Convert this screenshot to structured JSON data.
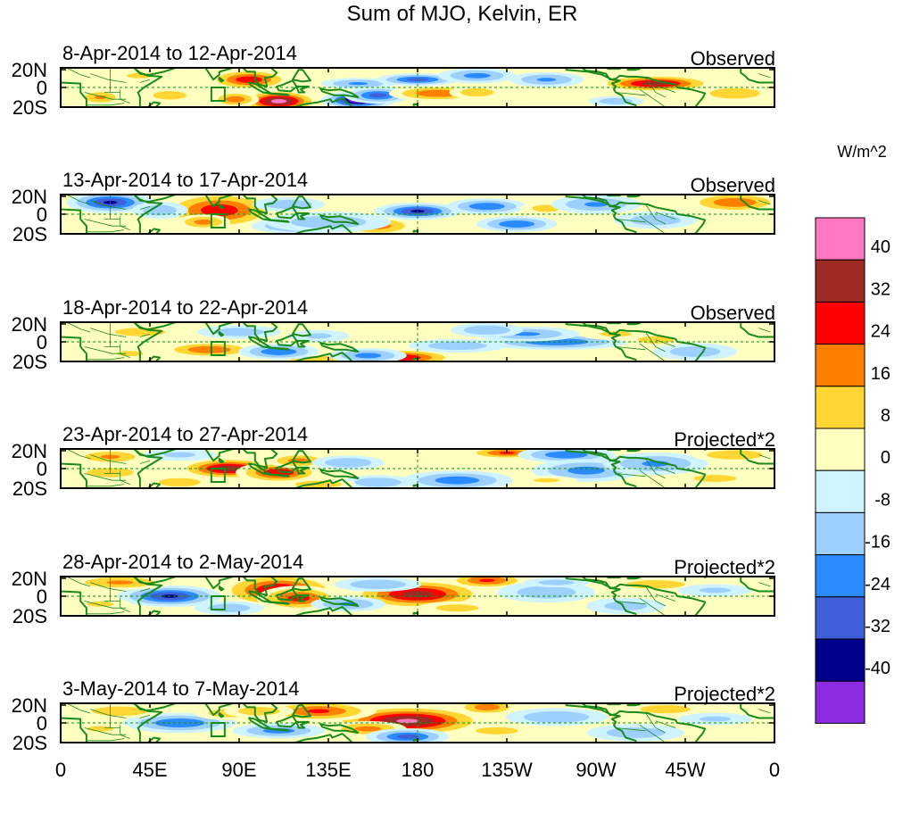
{
  "chart_data": {
    "type": "heatmap",
    "title": "Sum of MJO, Kelvin, ER",
    "units": "W/m^2",
    "x_ticks": [
      "0",
      "45E",
      "90E",
      "135E",
      "180",
      "135W",
      "90W",
      "45W",
      "0"
    ],
    "y_ticks": [
      "20N",
      "0",
      "20S"
    ],
    "colorbar": {
      "levels": [
        "40",
        "32",
        "24",
        "16",
        "8",
        "0",
        "-8",
        "-16",
        "-24",
        "-32",
        "-40"
      ],
      "colors": [
        "#ff77c0",
        "#9e2a25",
        "#ff0000",
        "#ff7f00",
        "#ffd633",
        "#ffffc0",
        "#cff3ff",
        "#9dd0ff",
        "#2a8bff",
        "#3f5fd8",
        "#00008c",
        "#8b2be2"
      ]
    },
    "panels": [
      {
        "date_range": "8-Apr-2014 to 12-Apr-2014",
        "label": "Observed",
        "blobs": [
          [
            95,
            8,
            10,
            5,
            30
          ],
          [
            110,
            -14,
            9,
            5,
            44
          ],
          [
            88,
            -12,
            6,
            4,
            22
          ],
          [
            150,
            -13,
            8,
            4,
            -48
          ],
          [
            160,
            -8,
            8,
            4,
            -28
          ],
          [
            150,
            4,
            10,
            3,
            -18
          ],
          [
            180,
            8,
            10,
            3,
            -28
          ],
          [
            190,
            -6,
            12,
            4,
            24
          ],
          [
            210,
            -5,
            8,
            4,
            14
          ],
          [
            300,
            4,
            14,
            4,
            36
          ],
          [
            280,
            -14,
            8,
            3,
            -14
          ],
          [
            245,
            8,
            10,
            4,
            -18
          ],
          [
            40,
            12,
            10,
            4,
            10
          ],
          [
            55,
            -8,
            8,
            4,
            14
          ],
          [
            20,
            -10,
            6,
            4,
            18
          ],
          [
            210,
            12,
            10,
            4,
            -20
          ],
          [
            340,
            -6,
            12,
            5,
            14
          ]
        ]
      },
      {
        "date_range": "13-Apr-2014 to 17-Apr-2014",
        "label": "Observed",
        "blobs": [
          [
            80,
            4,
            14,
            9,
            30
          ],
          [
            72,
            -8,
            7,
            4,
            20
          ],
          [
            25,
            12,
            10,
            5,
            -34
          ],
          [
            50,
            4,
            8,
            5,
            -14
          ],
          [
            160,
            -12,
            10,
            5,
            20
          ],
          [
            180,
            3,
            10,
            4,
            -34
          ],
          [
            120,
            -12,
            12,
            4,
            -22
          ],
          [
            135,
            -8,
            18,
            6,
            -14
          ],
          [
            215,
            8,
            10,
            4,
            -24
          ],
          [
            230,
            -10,
            10,
            4,
            -24
          ],
          [
            245,
            6,
            8,
            4,
            12
          ],
          [
            340,
            12,
            12,
            5,
            24
          ],
          [
            270,
            10,
            12,
            5,
            -18
          ],
          [
            300,
            -6,
            12,
            5,
            -14
          ],
          [
            20,
            -8,
            8,
            4,
            8
          ],
          [
            115,
            10,
            10,
            4,
            -16
          ]
        ]
      },
      {
        "date_range": "18-Apr-2014 to 22-Apr-2014",
        "label": "Observed",
        "blobs": [
          [
            75,
            -8,
            12,
            4,
            24
          ],
          [
            170,
            -16,
            14,
            4,
            34
          ],
          [
            130,
            -18,
            12,
            3,
            16
          ],
          [
            110,
            -10,
            10,
            4,
            -24
          ],
          [
            155,
            -14,
            10,
            4,
            -20
          ],
          [
            90,
            10,
            12,
            4,
            -14
          ],
          [
            250,
            0,
            18,
            4,
            -24
          ],
          [
            200,
            -4,
            14,
            4,
            -14
          ],
          [
            235,
            8,
            14,
            4,
            -18
          ],
          [
            40,
            10,
            12,
            4,
            14
          ],
          [
            280,
            8,
            12,
            4,
            10
          ],
          [
            320,
            -10,
            12,
            5,
            -14
          ],
          [
            215,
            12,
            10,
            4,
            -16
          ],
          [
            130,
            6,
            10,
            4,
            -10
          ],
          [
            35,
            -12,
            10,
            4,
            10
          ],
          [
            300,
            2,
            10,
            4,
            12
          ]
        ]
      },
      {
        "date_range": "23-Apr-2014 to 27-Apr-2014",
        "label": "Projected*2",
        "blobs": [
          [
            85,
            0,
            12,
            5,
            38
          ],
          [
            110,
            -4,
            10,
            5,
            32
          ],
          [
            120,
            8,
            8,
            4,
            20
          ],
          [
            25,
            12,
            10,
            4,
            18
          ],
          [
            25,
            -4,
            10,
            4,
            16
          ],
          [
            200,
            -12,
            14,
            5,
            -22
          ],
          [
            225,
            16,
            10,
            3,
            26
          ],
          [
            255,
            14,
            12,
            4,
            -24
          ],
          [
            265,
            -2,
            14,
            6,
            -20
          ],
          [
            300,
            5,
            14,
            6,
            -18
          ],
          [
            145,
            6,
            10,
            4,
            -16
          ],
          [
            160,
            -14,
            10,
            4,
            -16
          ],
          [
            340,
            14,
            12,
            4,
            16
          ],
          [
            60,
            14,
            12,
            4,
            -10
          ],
          [
            330,
            -10,
            12,
            4,
            12
          ],
          [
            245,
            -12,
            10,
            3,
            10
          ],
          [
            130,
            -16,
            10,
            3,
            16
          ],
          [
            60,
            -14,
            10,
            4,
            14
          ]
        ]
      },
      {
        "date_range": "28-Apr-2014 to 2-May-2014",
        "label": "Projected*2",
        "blobs": [
          [
            110,
            6,
            14,
            8,
            34
          ],
          [
            180,
            2,
            16,
            7,
            36
          ],
          [
            215,
            16,
            10,
            4,
            26
          ],
          [
            55,
            0,
            12,
            5,
            -34
          ],
          [
            120,
            -2,
            10,
            6,
            28
          ],
          [
            30,
            14,
            14,
            4,
            18
          ],
          [
            145,
            -8,
            10,
            4,
            -18
          ],
          [
            160,
            12,
            12,
            4,
            -16
          ],
          [
            245,
            4,
            14,
            6,
            -14
          ],
          [
            85,
            -12,
            10,
            4,
            -14
          ],
          [
            285,
            -10,
            12,
            5,
            -12
          ],
          [
            300,
            12,
            14,
            4,
            14
          ],
          [
            200,
            -12,
            12,
            4,
            12
          ],
          [
            330,
            6,
            12,
            4,
            -10
          ],
          [
            20,
            -8,
            10,
            4,
            10
          ],
          [
            250,
            14,
            10,
            3,
            -12
          ]
        ]
      },
      {
        "date_range": "3-May-2014 to 7-May-2014",
        "label": "Projected*2",
        "blobs": [
          [
            175,
            2,
            18,
            7,
            42
          ],
          [
            130,
            12,
            14,
            5,
            26
          ],
          [
            155,
            -6,
            10,
            4,
            20
          ],
          [
            215,
            16,
            8,
            4,
            22
          ],
          [
            60,
            0,
            14,
            5,
            -24
          ],
          [
            110,
            -8,
            12,
            4,
            -20
          ],
          [
            175,
            -14,
            10,
            4,
            -28
          ],
          [
            30,
            12,
            12,
            4,
            16
          ],
          [
            250,
            6,
            14,
            5,
            -16
          ],
          [
            85,
            10,
            10,
            4,
            14
          ],
          [
            290,
            -10,
            14,
            5,
            -14
          ],
          [
            305,
            14,
            12,
            4,
            14
          ],
          [
            220,
            -8,
            12,
            4,
            12
          ],
          [
            20,
            -6,
            10,
            4,
            10
          ],
          [
            330,
            4,
            12,
            4,
            -10
          ],
          [
            100,
            12,
            10,
            4,
            14
          ]
        ]
      }
    ]
  }
}
